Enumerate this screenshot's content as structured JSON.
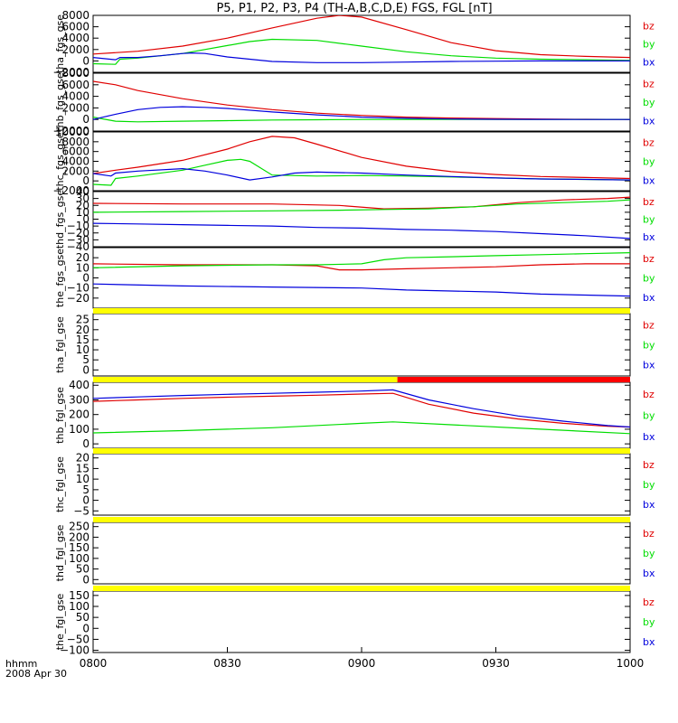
{
  "chart_data": {
    "type": "line",
    "title": "P5, P1, P2, P3, P4 (TH-A,B,C,D,E) FGS, FGL [nT]",
    "x_labels": {
      "line1": "hhmm",
      "line2": "2008 Apr 30"
    },
    "x_ticks": [
      "0800",
      "0830",
      "0900",
      "0930",
      "1000"
    ],
    "x_range_minutes": [
      0,
      120
    ],
    "colors": {
      "bz": "#e00000",
      "by": "#00dd00",
      "bx": "#0000dd",
      "status_ok": "#ffff00",
      "status_bad": "#ff0000"
    },
    "panels": [
      {
        "ylabel": "tha_fgs_gse",
        "ylim": [
          -2000,
          8000
        ],
        "yticks": [
          "8000",
          "6000",
          "4000",
          "2000",
          "0",
          "−2000"
        ],
        "legend": [
          "bz",
          "by",
          "bx"
        ],
        "series": [
          {
            "name": "bz",
            "x": [
              0,
              10,
              20,
              30,
              40,
              50,
              55,
              60,
              70,
              80,
              90,
              100,
              110,
              120
            ],
            "y": [
              1200,
              1700,
              2600,
              4000,
              5800,
              7500,
              8000,
              7700,
              5500,
              3200,
              1800,
              1100,
              800,
              600
            ]
          },
          {
            "name": "by",
            "x": [
              0,
              5,
              6,
              10,
              20,
              30,
              35,
              40,
              50,
              60,
              70,
              80,
              90,
              100,
              110,
              120
            ],
            "y": [
              -500,
              -600,
              300,
              500,
              1300,
              2700,
              3400,
              3800,
              3600,
              2600,
              1600,
              900,
              500,
              300,
              200,
              100
            ]
          },
          {
            "name": "bx",
            "x": [
              0,
              5,
              6,
              10,
              15,
              20,
              22,
              25,
              30,
              40,
              50,
              60,
              70,
              80,
              90,
              100,
              110,
              120
            ],
            "y": [
              600,
              200,
              600,
              600,
              900,
              1300,
              1400,
              1300,
              700,
              -100,
              -300,
              -300,
              -200,
              -100,
              -50,
              0,
              0,
              0
            ]
          }
        ]
      },
      {
        "ylabel": "thb_fgs_gse",
        "ylim": [
          -2000,
          8000
        ],
        "yticks": [
          "8000",
          "6000",
          "4000",
          "2000",
          "0",
          "−2000"
        ],
        "legend": [
          "bz",
          "by",
          "bx"
        ],
        "series": [
          {
            "name": "bz",
            "x": [
              0,
              5,
              10,
              20,
              30,
              40,
              50,
              60,
              70,
              80,
              90,
              100,
              110,
              120
            ],
            "y": [
              6600,
              6000,
              5000,
              3600,
              2500,
              1700,
              1100,
              700,
              400,
              250,
              150,
              80,
              30,
              0
            ]
          },
          {
            "name": "by",
            "x": [
              0,
              5,
              10,
              20,
              30,
              40,
              50,
              60,
              70,
              80,
              90,
              100,
              110,
              120
            ],
            "y": [
              400,
              -300,
              -400,
              -300,
              -200,
              -100,
              -50,
              0,
              0,
              0,
              0,
              0,
              0,
              0
            ]
          },
          {
            "name": "bx",
            "x": [
              0,
              5,
              10,
              15,
              20,
              25,
              30,
              40,
              50,
              60,
              70,
              80,
              90,
              100,
              110,
              120
            ],
            "y": [
              0,
              900,
              1700,
              2100,
              2200,
              2100,
              1900,
              1300,
              800,
              400,
              200,
              80,
              30,
              10,
              0,
              0
            ]
          }
        ]
      },
      {
        "ylabel": "thc_fgs_gse",
        "ylim": [
          -2000,
          10000
        ],
        "yticks": [
          "10000",
          "8000",
          "6000",
          "4000",
          "2000",
          "0",
          "−2000"
        ],
        "legend": [
          "bz",
          "by",
          "bx"
        ],
        "series": [
          {
            "name": "bz",
            "x": [
              0,
              5,
              10,
              20,
              30,
              35,
              40,
              45,
              50,
              60,
              70,
              80,
              90,
              100,
              110,
              120
            ],
            "y": [
              1500,
              2200,
              2800,
              4200,
              6500,
              8000,
              9100,
              8800,
              7500,
              4800,
              3000,
              1900,
              1300,
              900,
              700,
              500
            ]
          },
          {
            "name": "by",
            "x": [
              0,
              4,
              5,
              10,
              20,
              25,
              30,
              33,
              35,
              40,
              50,
              60,
              70,
              80,
              90,
              100,
              110,
              120
            ],
            "y": [
              -700,
              -900,
              500,
              1000,
              2200,
              3200,
              4200,
              4400,
              4000,
              1200,
              1000,
              1100,
              1000,
              800,
              600,
              400,
              300,
              200
            ]
          },
          {
            "name": "bx",
            "x": [
              0,
              4,
              5,
              10,
              20,
              25,
              30,
              35,
              40,
              45,
              50,
              60,
              70,
              80,
              90,
              100,
              110,
              120
            ],
            "y": [
              1500,
              1000,
              1600,
              2000,
              2500,
              2000,
              1200,
              200,
              800,
              1600,
              1800,
              1600,
              1200,
              900,
              600,
              400,
              300,
              200
            ]
          }
        ]
      },
      {
        "ylabel": "thd_fgs_gse",
        "ylim": [
          -40,
          40
        ],
        "yticks": [
          "40",
          "30",
          "20",
          "10",
          "0",
          "−10",
          "−20",
          "−30",
          "−40"
        ],
        "legend": [
          "bz",
          "by",
          "bx"
        ],
        "series": [
          {
            "name": "bz",
            "x": [
              0,
              20,
              40,
              55,
              65,
              75,
              85,
              95,
              105,
              115,
              120
            ],
            "y": [
              23,
              22,
              22,
              20,
              15,
              16,
              18,
              24,
              28,
              30,
              32
            ]
          },
          {
            "name": "by",
            "x": [
              0,
              20,
              40,
              55,
              65,
              75,
              85,
              95,
              105,
              115,
              120
            ],
            "y": [
              10,
              11,
              12,
              13,
              14,
              15,
              18,
              22,
              24,
              26,
              28
            ]
          },
          {
            "name": "bx",
            "x": [
              0,
              10,
              20,
              30,
              40,
              50,
              60,
              70,
              80,
              90,
              100,
              110,
              120
            ],
            "y": [
              -6,
              -7,
              -8,
              -9,
              -10,
              -12,
              -13,
              -15,
              -16,
              -18,
              -21,
              -24,
              -28
            ]
          }
        ]
      },
      {
        "ylabel": "the_fgs_gse",
        "ylim": [
          -30,
          30
        ],
        "yticks": [
          "20",
          "10",
          "0",
          "−10",
          "−20"
        ],
        "legend": [
          "bz",
          "by",
          "bx"
        ],
        "series": [
          {
            "name": "bz",
            "x": [
              0,
              20,
              40,
              50,
              55,
              60,
              70,
              80,
              90,
              100,
              110,
              120
            ],
            "y": [
              14,
              13,
              13,
              12,
              8,
              8,
              9,
              10,
              11,
              13,
              14,
              14
            ]
          },
          {
            "name": "by",
            "x": [
              0,
              20,
              40,
              50,
              60,
              65,
              70,
              80,
              90,
              100,
              110,
              120
            ],
            "y": [
              10,
              12,
              13,
              13,
              14,
              18,
              20,
              21,
              22,
              23,
              24,
              25
            ]
          },
          {
            "name": "bx",
            "x": [
              0,
              20,
              40,
              60,
              70,
              80,
              90,
              100,
              110,
              120
            ],
            "y": [
              -6,
              -8,
              -9,
              -10,
              -12,
              -13,
              -14,
              -16,
              -17,
              -18
            ]
          }
        ]
      },
      {
        "ylabel": "tha_fgl_gse",
        "ylim": [
          -3,
          28
        ],
        "yticks": [
          "25",
          "20",
          "15",
          "10",
          "5",
          "0"
        ],
        "legend": [
          "bz",
          "by",
          "bx"
        ],
        "series": []
      },
      {
        "ylabel": "thb_fgl_gse",
        "ylim": [
          -30,
          420
        ],
        "yticks": [
          "400",
          "300",
          "200",
          "100",
          "0"
        ],
        "legend": [
          "bz",
          "by",
          "bx"
        ],
        "series": [
          {
            "name": "bz",
            "x": [
              0,
              10,
              20,
              30,
              40,
              50,
              60,
              67,
              75,
              85,
              95,
              105,
              115,
              120
            ],
            "y": [
              290,
              300,
              310,
              318,
              325,
              332,
              340,
              345,
              270,
              210,
              170,
              140,
              120,
              115
            ]
          },
          {
            "name": "by",
            "x": [
              0,
              20,
              40,
              60,
              67,
              80,
              100,
              120
            ],
            "y": [
              75,
              90,
              110,
              140,
              150,
              130,
              100,
              70
            ]
          },
          {
            "name": "bx",
            "x": [
              0,
              10,
              20,
              30,
              40,
              50,
              60,
              67,
              75,
              85,
              95,
              105,
              115,
              120
            ],
            "y": [
              310,
              320,
              330,
              338,
              345,
              352,
              360,
              368,
              300,
              240,
              190,
              155,
              125,
              115
            ]
          }
        ]
      },
      {
        "ylabel": "thc_fgl_gse",
        "ylim": [
          -7,
          22
        ],
        "yticks": [
          "20",
          "15",
          "10",
          "5",
          "0",
          "−5"
        ],
        "legend": [
          "bz",
          "by",
          "bx"
        ],
        "series": []
      },
      {
        "ylabel": "thd_fgl_gse",
        "ylim": [
          -20,
          270
        ],
        "yticks": [
          "250",
          "200",
          "150",
          "100",
          "50",
          "0"
        ],
        "legend": [
          "bz",
          "by",
          "bx"
        ],
        "series": []
      },
      {
        "ylabel": "the_fgl_gse",
        "ylim": [
          -110,
          170
        ],
        "yticks": [
          "150",
          "100",
          "50",
          "0",
          "−50",
          "−100"
        ],
        "legend": [
          "bz",
          "by",
          "bx"
        ],
        "series": []
      }
    ],
    "status_bars": [
      {
        "segments": [
          {
            "from": 0,
            "to": 120,
            "color": "status_ok"
          }
        ]
      },
      {
        "segments": [
          {
            "from": 0,
            "to": 68,
            "color": "status_ok"
          },
          {
            "from": 68,
            "to": 120,
            "color": "status_bad"
          }
        ]
      },
      {
        "segments": [
          {
            "from": 0,
            "to": 120,
            "color": "status_ok"
          }
        ]
      },
      {
        "segments": [
          {
            "from": 0,
            "to": 120,
            "color": "status_ok"
          }
        ]
      },
      {
        "segments": [
          {
            "from": 0,
            "to": 120,
            "color": "status_ok"
          }
        ]
      }
    ]
  }
}
